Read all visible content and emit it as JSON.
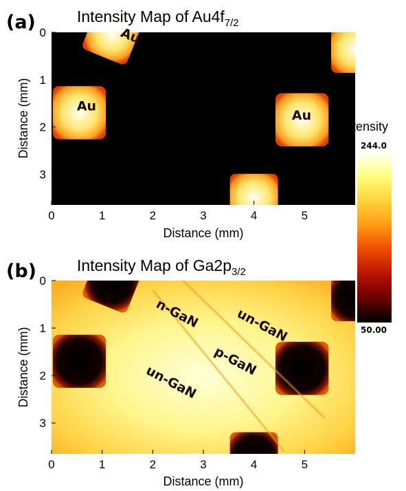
{
  "chart_data": [
    {
      "type": "heatmap",
      "panel_label": "(a)",
      "title": "Intensity Map of Au4f",
      "title_subscript": "7/2",
      "xlabel": "Distance (mm)",
      "ylabel": "Distance (mm)",
      "xlim": [
        0,
        6
      ],
      "ylim": [
        3.65,
        0
      ],
      "xticks": [
        "0",
        "1",
        "2",
        "3",
        "4",
        "5"
      ],
      "yticks": [
        "0",
        "1",
        "2",
        "3"
      ],
      "background_color": "#000000",
      "regions": [
        {
          "label": "Au",
          "label_x": 1.35,
          "label_y": 0.08,
          "label_rotation": 22
        },
        {
          "label": "Au",
          "label_x": 0.5,
          "label_y": 1.65,
          "label_rotation": 0
        },
        {
          "label": "Au",
          "label_x": 4.75,
          "label_y": 1.85,
          "label_rotation": 0
        }
      ],
      "squares": [
        {
          "cx": 1.2,
          "cy": 0.05,
          "size": 0.95,
          "rotation": 22,
          "tone": "bright"
        },
        {
          "cx": 0.55,
          "cy": 1.7,
          "size": 1.05,
          "rotation": 0,
          "tone": "bright"
        },
        {
          "cx": 4.95,
          "cy": 1.85,
          "size": 1.05,
          "rotation": 0,
          "tone": "bright"
        },
        {
          "cx": 6.0,
          "cy": 0.35,
          "size": 0.95,
          "rotation": 0,
          "tone": "bright"
        },
        {
          "cx": 4.0,
          "cy": 3.5,
          "size": 0.95,
          "rotation": 0,
          "tone": "bright"
        }
      ]
    },
    {
      "type": "heatmap",
      "panel_label": "(b)",
      "title": "Intensity Map of Ga2p",
      "title_subscript": "3/2",
      "xlabel": "Distance (mm)",
      "ylabel": "Distance (mm)",
      "xlim": [
        0,
        6
      ],
      "ylim": [
        3.65,
        0
      ],
      "xticks": [
        "0",
        "1",
        "2",
        "3",
        "4",
        "5"
      ],
      "yticks": [
        "0",
        "1",
        "2",
        "3"
      ],
      "background_color": "#ffd34a",
      "regions": [
        {
          "label": "n-GaN",
          "label_x": 2.05,
          "label_y": 0.55,
          "label_rotation": 28
        },
        {
          "label": "un-GaN",
          "label_x": 3.65,
          "label_y": 0.75,
          "label_rotation": 28
        },
        {
          "label": "p-GaN",
          "label_x": 3.2,
          "label_y": 1.55,
          "label_rotation": 28
        },
        {
          "label": "un-GaN",
          "label_x": 1.85,
          "label_y": 1.95,
          "label_rotation": 28
        }
      ],
      "squares": [
        {
          "cx": 1.2,
          "cy": 0.05,
          "size": 0.95,
          "rotation": 22,
          "tone": "dark"
        },
        {
          "cx": 0.55,
          "cy": 1.7,
          "size": 1.05,
          "rotation": 0,
          "tone": "dark"
        },
        {
          "cx": 4.95,
          "cy": 1.85,
          "size": 1.05,
          "rotation": 0,
          "tone": "dark"
        },
        {
          "cx": 6.0,
          "cy": 0.35,
          "size": 0.95,
          "rotation": 0,
          "tone": "dark"
        },
        {
          "cx": 4.0,
          "cy": 3.7,
          "size": 0.95,
          "rotation": 0,
          "tone": "dark"
        }
      ]
    }
  ],
  "colorbar": {
    "title": "Intensity",
    "max_label": "244.0",
    "min_label": "50.00",
    "max": 244.0,
    "min": 50.0,
    "colors": [
      "#fffff4",
      "#ffff7a",
      "#ffd23c",
      "#ff9a14",
      "#f04a00",
      "#b81400",
      "#6a0000",
      "#000000"
    ]
  }
}
